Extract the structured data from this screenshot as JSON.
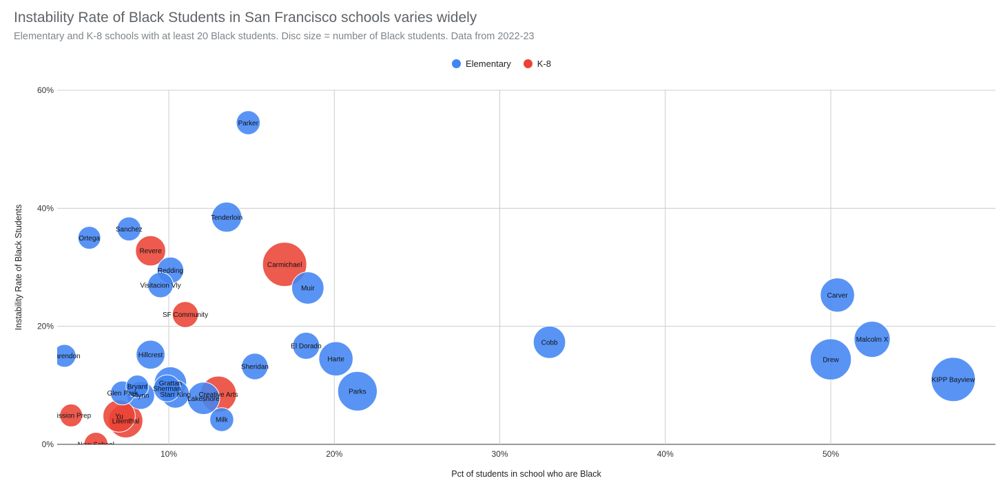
{
  "chart_data": {
    "type": "scatter",
    "title": "Instability Rate of Black Students in San Francisco schools varies widely",
    "subtitle": "Elementary and K-8 schools with at least 20 Black students. Disc size = number of Black students. Data from 2022-23",
    "xlabel": "Pct of students in school who are Black",
    "ylabel": "Instability Rate of Black Students",
    "xlim": [
      3,
      59
    ],
    "ylim": [
      0,
      60
    ],
    "x_ticks": [
      "10%",
      "20%",
      "30%",
      "40%",
      "50%"
    ],
    "y_ticks": [
      "0%",
      "20%",
      "40%",
      "60%"
    ],
    "grid": true,
    "legend_position": "top-center",
    "size_encoding": "number of Black students",
    "series": [
      {
        "name": "Elementary",
        "color": "#4285f4",
        "points": [
          {
            "label": "Parker",
            "x": 14.8,
            "y": 54.5,
            "size": 22
          },
          {
            "label": "Tenderloin",
            "x": 13.5,
            "y": 38.5,
            "size": 35
          },
          {
            "label": "Sanchez",
            "x": 7.6,
            "y": 36.5,
            "size": 22
          },
          {
            "label": "Ortega",
            "x": 5.2,
            "y": 35.0,
            "size": 20
          },
          {
            "label": "Redding",
            "x": 10.1,
            "y": 29.5,
            "size": 27
          },
          {
            "label": "Visitacion Vly",
            "x": 9.5,
            "y": 27.0,
            "size": 25
          },
          {
            "label": "Muir",
            "x": 18.4,
            "y": 26.5,
            "size": 40
          },
          {
            "label": "Clarendon",
            "x": 3.7,
            "y": 15.0,
            "size": 20
          },
          {
            "label": "Hillcrest",
            "x": 8.9,
            "y": 15.2,
            "size": 32
          },
          {
            "label": "El Dorado",
            "x": 18.3,
            "y": 16.7,
            "size": 28
          },
          {
            "label": "Sheridan",
            "x": 15.2,
            "y": 13.2,
            "size": 27
          },
          {
            "label": "Harte",
            "x": 20.1,
            "y": 14.5,
            "size": 45
          },
          {
            "label": "Parks",
            "x": 21.4,
            "y": 9.0,
            "size": 60
          },
          {
            "label": "Bryant",
            "x": 8.1,
            "y": 9.8,
            "size": 20
          },
          {
            "label": "Glen Park",
            "x": 7.2,
            "y": 8.7,
            "size": 22
          },
          {
            "label": "Flynn",
            "x": 8.3,
            "y": 8.3,
            "size": 30
          },
          {
            "label": "Grattan",
            "x": 10.1,
            "y": 10.4,
            "size": 40
          },
          {
            "label": "Sherman",
            "x": 9.9,
            "y": 9.5,
            "size": 28
          },
          {
            "label": "Starr King",
            "x": 10.4,
            "y": 8.5,
            "size": 30
          },
          {
            "label": "Lakeshore",
            "x": 12.1,
            "y": 7.8,
            "size": 40
          },
          {
            "label": "Milk",
            "x": 13.2,
            "y": 4.2,
            "size": 22
          },
          {
            "label": "Cobb",
            "x": 33.0,
            "y": 17.3,
            "size": 40
          },
          {
            "label": "Carver",
            "x": 50.4,
            "y": 25.3,
            "size": 45
          },
          {
            "label": "Malcolm X",
            "x": 52.5,
            "y": 17.8,
            "size": 50
          },
          {
            "label": "Drew",
            "x": 50.0,
            "y": 14.4,
            "size": 65
          },
          {
            "label": "KIPP Bayview",
            "x": 57.4,
            "y": 11.0,
            "size": 75
          }
        ]
      },
      {
        "name": "K-8",
        "color": "#ea4335",
        "points": [
          {
            "label": "Revere",
            "x": 8.9,
            "y": 32.8,
            "size": 35
          },
          {
            "label": "Carmichael",
            "x": 17.0,
            "y": 30.5,
            "size": 75
          },
          {
            "label": "SF Community",
            "x": 11.0,
            "y": 22.0,
            "size": 26
          },
          {
            "label": "Creative Arts",
            "x": 13.0,
            "y": 8.5,
            "size": 50
          },
          {
            "label": "Mission Prep",
            "x": 4.1,
            "y": 4.9,
            "size": 20
          },
          {
            "label": "Yu",
            "x": 7.0,
            "y": 4.8,
            "size": 40
          },
          {
            "label": "Lilienthal",
            "x": 7.4,
            "y": 4.0,
            "size": 45
          },
          {
            "label": "New School",
            "x": 5.6,
            "y": 0.0,
            "size": 22
          }
        ]
      }
    ]
  },
  "legend": [
    {
      "label": "Elementary",
      "color": "#4285f4"
    },
    {
      "label": "K-8",
      "color": "#ea4335"
    }
  ]
}
